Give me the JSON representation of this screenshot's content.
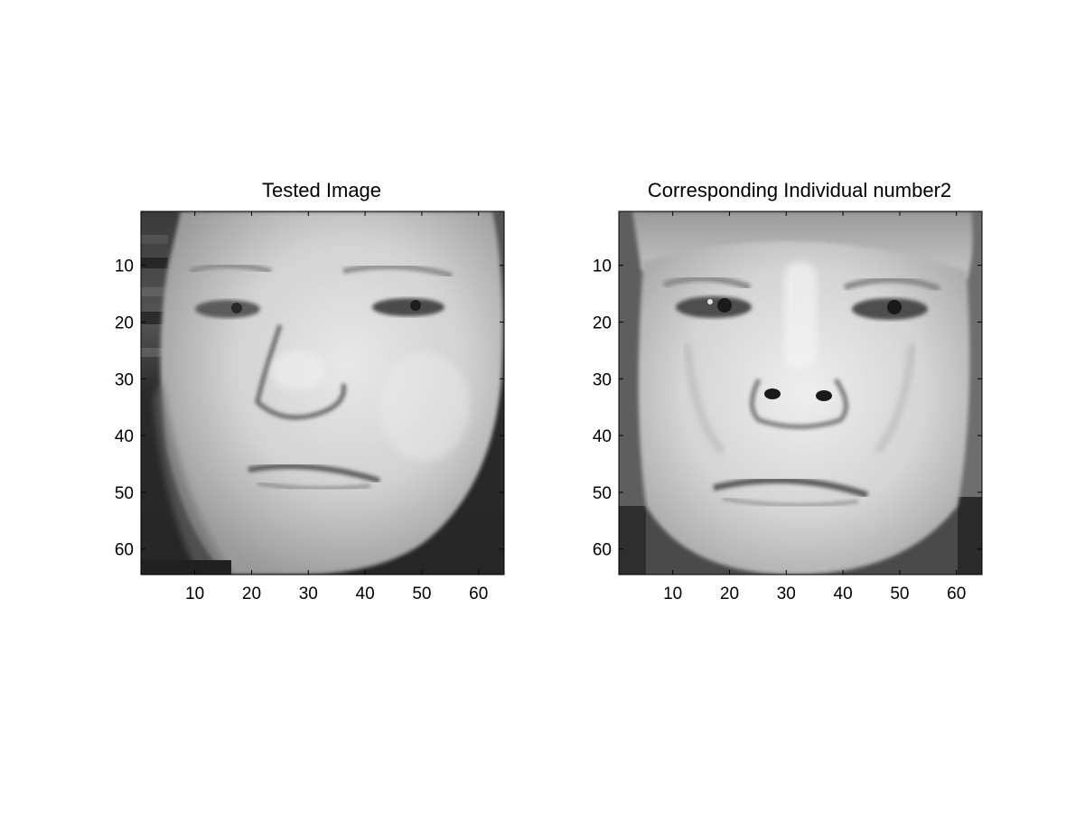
{
  "figure": {
    "background": "#ffffff",
    "panels": [
      {
        "id": "tested",
        "title": "Tested Image",
        "x_ticks": [
          "10",
          "20",
          "30",
          "40",
          "50",
          "60"
        ],
        "y_ticks": [
          "10",
          "20",
          "30",
          "40",
          "50",
          "60"
        ],
        "image_extent": [
          0.5,
          64.5
        ],
        "image_description": "grayscale face photo",
        "colormap": "gray"
      },
      {
        "id": "match",
        "title": "Corresponding Individual number2",
        "x_ticks": [
          "10",
          "20",
          "30",
          "40",
          "50",
          "60"
        ],
        "y_ticks": [
          "10",
          "20",
          "30",
          "40",
          "50",
          "60"
        ],
        "image_extent": [
          0.5,
          64.5
        ],
        "image_description": "grayscale face photo",
        "colormap": "gray"
      }
    ]
  }
}
